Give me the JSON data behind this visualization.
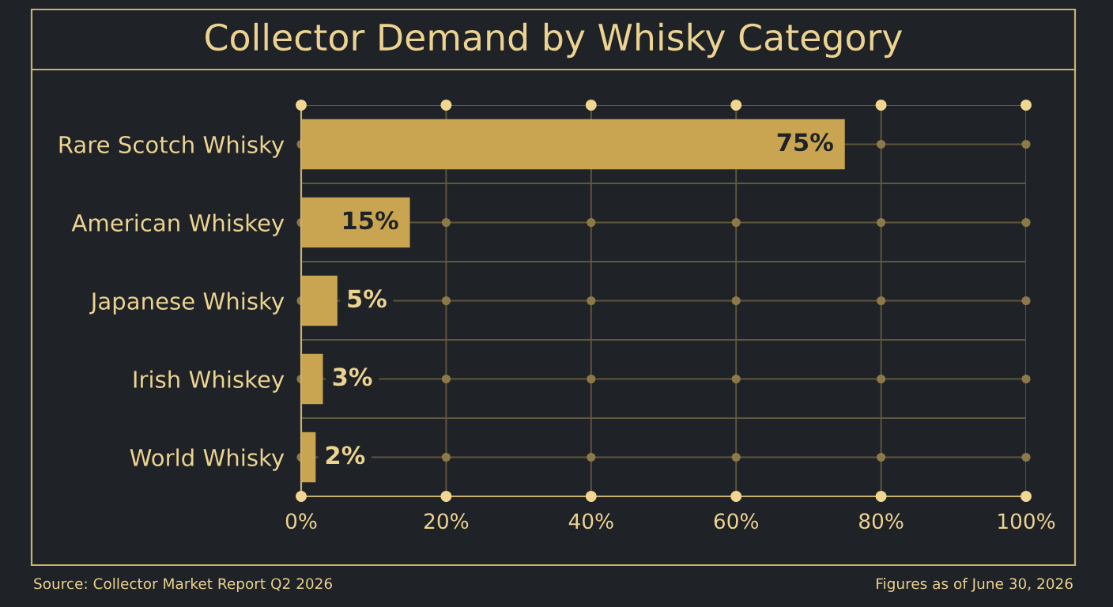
{
  "chart_data": {
    "type": "bar",
    "orientation": "horizontal",
    "title": "Collector Demand by Whisky Category",
    "categories": [
      "Rare Scotch Whisky",
      "American Whiskey",
      "Japanese Whisky",
      "Irish Whiskey",
      "World Whisky"
    ],
    "values": [
      75,
      15,
      5,
      3,
      2
    ],
    "value_labels": [
      "75%",
      "15%",
      "5%",
      "3%",
      "2%"
    ],
    "color": "#c9a551",
    "xlim": [
      0,
      100
    ],
    "xticks": [
      {
        "value": 0,
        "label": "0%"
      },
      {
        "value": 20,
        "label": "20%"
      },
      {
        "value": 40,
        "label": "40%"
      },
      {
        "value": 60,
        "label": "60%"
      },
      {
        "value": 80,
        "label": "80%"
      },
      {
        "value": 100,
        "label": "100%"
      }
    ],
    "grid": true,
    "annotations": [
      "Source: Collector Market Report Q2 2026",
      "Figures as of June 30, 2026"
    ]
  }
}
